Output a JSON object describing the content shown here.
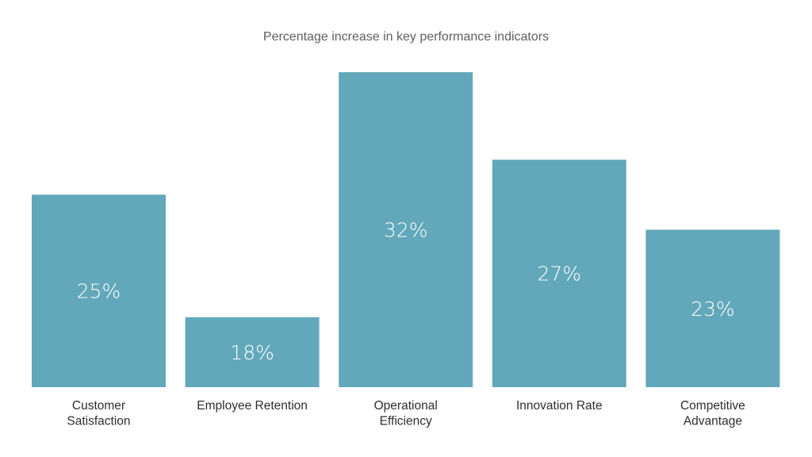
{
  "chart_data": {
    "type": "bar",
    "title": "Percentage increase in key performance indicators",
    "categories": [
      [
        "Customer",
        "Satisfaction"
      ],
      [
        "Employee Retention"
      ],
      [
        "Operational",
        "Efficiency"
      ],
      [
        "Innovation Rate"
      ],
      [
        "Competitive",
        "Advantage"
      ]
    ],
    "values": [
      25,
      18,
      32,
      27,
      23
    ],
    "value_labels": [
      "25%",
      "18%",
      "32%",
      "27%",
      "23%"
    ],
    "ylim": [
      14,
      32
    ],
    "xlabel": "",
    "ylabel": "",
    "grid": false,
    "bar_color": "#62a8ba",
    "label_color": "#ffffff"
  }
}
